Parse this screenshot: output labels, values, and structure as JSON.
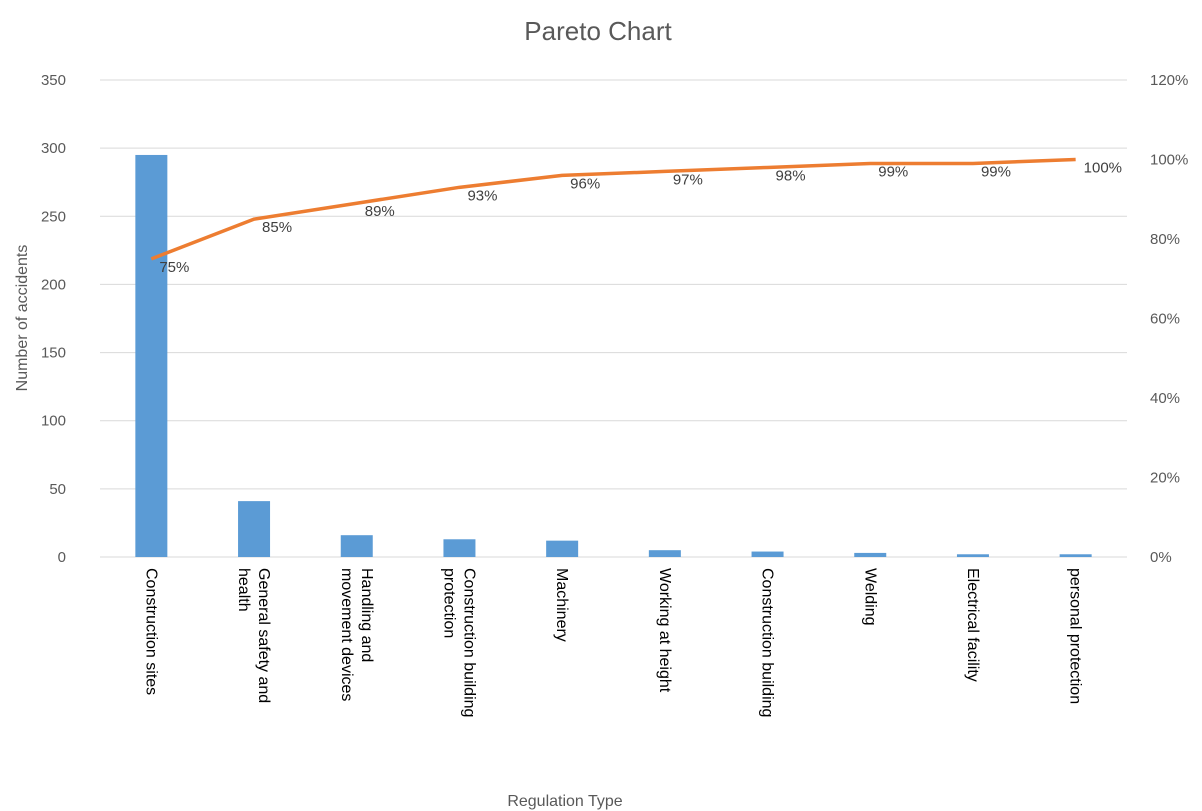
{
  "chart_data": {
    "type": "bar",
    "title": "Pareto Chart",
    "xlabel": "Regulation Type",
    "ylabel": "Number  of accidents",
    "ylim": [
      0,
      350
    ],
    "yticks": [
      "0",
      "50",
      "100",
      "150",
      "200",
      "250",
      "300",
      "350"
    ],
    "y2lim": [
      0,
      1.2
    ],
    "y2ticks": [
      "0%",
      "20%",
      "40%",
      "60%",
      "80%",
      "100%",
      "120%"
    ],
    "grid": true,
    "categories": [
      [
        "Construction sites"
      ],
      [
        "General safety and",
        "health"
      ],
      [
        "Handling and",
        "movement devices"
      ],
      [
        "Construction building",
        "protection"
      ],
      [
        "Machinery"
      ],
      [
        "Working at height"
      ],
      [
        "Construction building"
      ],
      [
        "Welding"
      ],
      [
        "Electrical facility"
      ],
      [
        "personal protection"
      ]
    ],
    "series": [
      {
        "type": "bar",
        "axis": "left",
        "color": "#5b9bd5",
        "values": [
          295,
          41,
          16,
          13,
          12,
          5,
          4,
          3,
          2,
          2
        ]
      },
      {
        "type": "line",
        "axis": "right",
        "color": "#ed7d31",
        "values": [
          0.75,
          0.85,
          0.89,
          0.93,
          0.96,
          0.97,
          0.98,
          0.99,
          0.99,
          1.0
        ],
        "labels": [
          "75%",
          "85%",
          "89%",
          "93%",
          "96%",
          "97%",
          "98%",
          "99%",
          "99%",
          "100%"
        ]
      }
    ]
  }
}
